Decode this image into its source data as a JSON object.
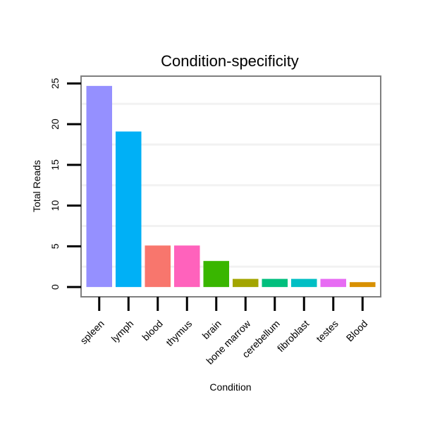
{
  "chart_data": {
    "type": "bar",
    "title": "Condition-specificity",
    "xlabel": "Condition",
    "ylabel": "Total Reads",
    "categories": [
      "spleen",
      "lymph",
      "blood",
      "thymus",
      "brain",
      "bone marrow",
      "cerebellum",
      "fibroblast",
      "testes",
      "Blood"
    ],
    "values": [
      24.7,
      19.1,
      5.1,
      5.1,
      3.2,
      1.0,
      1.0,
      1.0,
      1.0,
      0.6
    ],
    "colors": [
      "#9590FF",
      "#00B0F6",
      "#F8766D",
      "#FF62BC",
      "#39B600",
      "#A3A500",
      "#00BF7D",
      "#00BFC4",
      "#E76BF3",
      "#D89000"
    ],
    "yticks": [
      0,
      5,
      10,
      15,
      20,
      25
    ],
    "ylim": [
      -1.2,
      25.9
    ],
    "grid": true,
    "legend": "none"
  }
}
